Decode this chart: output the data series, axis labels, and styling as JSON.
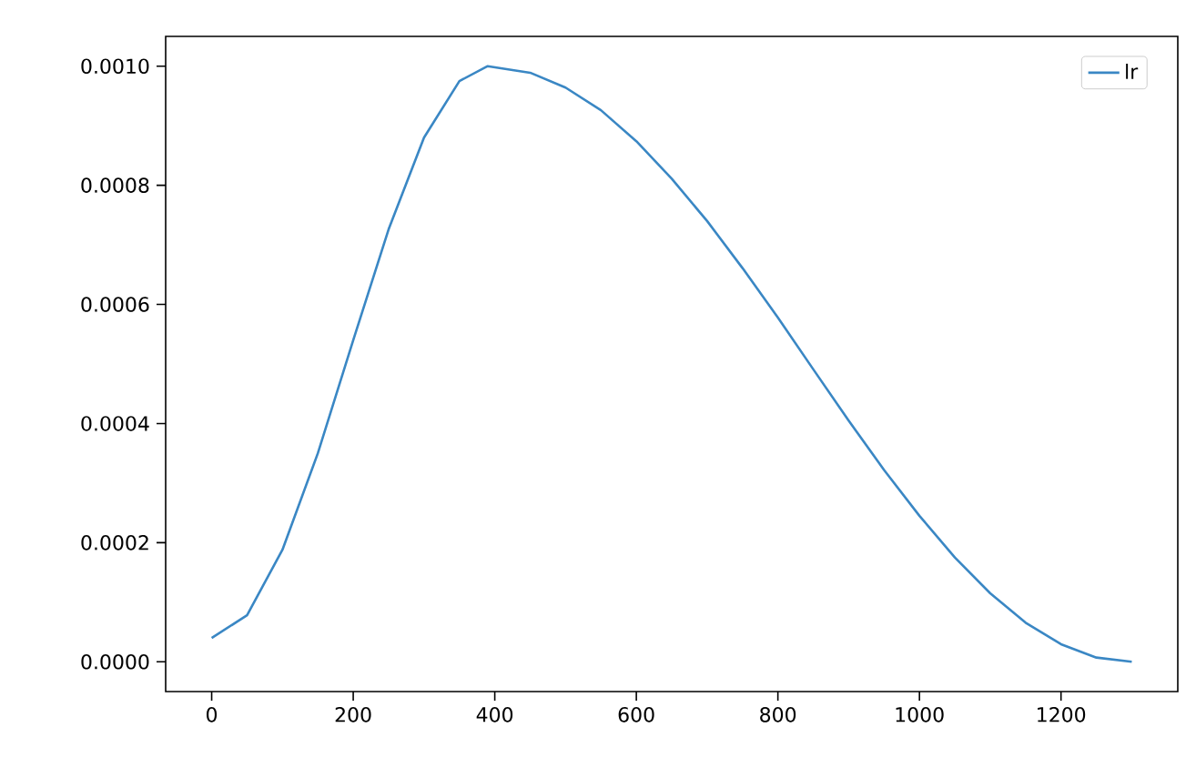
{
  "chart_data": {
    "type": "line",
    "x": [
      0,
      50,
      100,
      150,
      200,
      250,
      300,
      350,
      390,
      450,
      500,
      550,
      600,
      650,
      700,
      750,
      800,
      850,
      900,
      950,
      1000,
      1050,
      1100,
      1150,
      1200,
      1250,
      1300
    ],
    "series": [
      {
        "name": "lr",
        "color": "#3a87c4",
        "values": [
          4e-05,
          7.8e-05,
          0.000188,
          0.00035,
          0.00054,
          0.000726,
          0.00088,
          0.000975,
          0.001,
          0.000989,
          0.000964,
          0.000926,
          0.000874,
          0.000811,
          0.00074,
          0.000661,
          0.000578,
          0.000491,
          0.000405,
          0.000322,
          0.000245,
          0.000175,
          0.000115,
          6.55e-05,
          2.95e-05,
          7e-06,
          0
        ]
      }
    ],
    "xlim": [
      -65,
      1365
    ],
    "ylim": [
      -5e-05,
      0.00105
    ],
    "xticks": [
      0,
      200,
      400,
      600,
      800,
      1000,
      1200
    ],
    "yticks": [
      {
        "value": 0,
        "label": "0.0000"
      },
      {
        "value": 0.0002,
        "label": "0.0002"
      },
      {
        "value": 0.0004,
        "label": "0.0004"
      },
      {
        "value": 0.0006,
        "label": "0.0006"
      },
      {
        "value": 0.0008,
        "label": "0.0008"
      },
      {
        "value": 0.001,
        "label": "0.0010"
      }
    ],
    "legend": "top right",
    "grid": false,
    "marker": "none",
    "line_style": "solid"
  }
}
